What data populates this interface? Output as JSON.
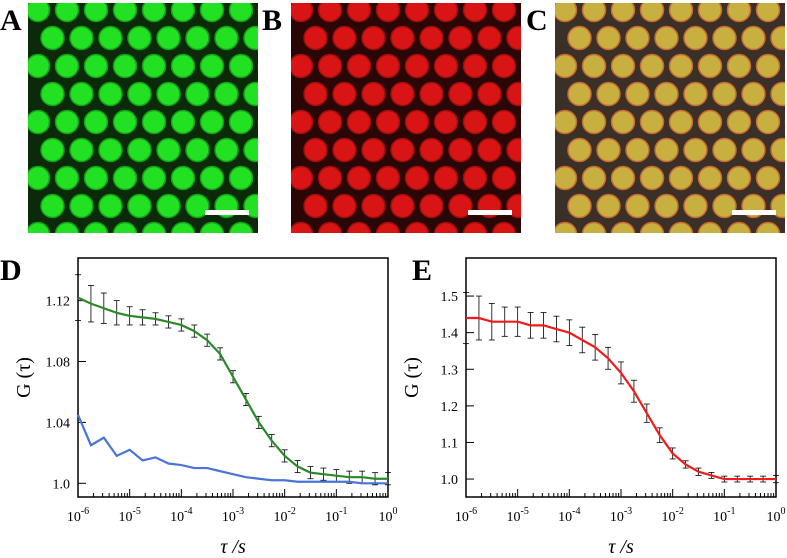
{
  "image_panels": {
    "labels": [
      "A",
      "B",
      "C"
    ]
  },
  "chart_data": [
    {
      "type": "line",
      "label": "D",
      "xscale": "log",
      "xlabel": "τ /s",
      "ylabel": "G (τ)",
      "x": [
        1e-06,
        1.78e-06,
        3.16e-06,
        5.62e-06,
        1e-05,
        1.78e-05,
        3.16e-05,
        5.62e-05,
        0.0001,
        0.000178,
        0.000316,
        0.000562,
        0.001,
        0.00178,
        0.00316,
        0.00562,
        0.01,
        0.0178,
        0.0316,
        0.0562,
        0.1,
        0.178,
        0.316,
        0.562,
        1
      ],
      "xlim": [
        1e-06,
        1
      ],
      "xticks": [
        {
          "value": 1e-06,
          "label": "10-6"
        },
        {
          "value": 1e-05,
          "label": "10-5"
        },
        {
          "value": 0.0001,
          "label": "10-4"
        },
        {
          "value": 0.001,
          "label": "10-3"
        },
        {
          "value": 0.01,
          "label": "10-2"
        },
        {
          "value": 0.1,
          "label": "10-1"
        },
        {
          "value": 1,
          "label": "100"
        }
      ],
      "ylim": [
        0.991,
        1.148
      ],
      "yticks": [
        {
          "value": 1,
          "label": "1.0"
        },
        1.04,
        1.08,
        1.12
      ],
      "series": [
        {
          "color": "#2a8a2a",
          "values": [
            1.122,
            1.118,
            1.115,
            1.112,
            1.11,
            1.109,
            1.108,
            1.106,
            1.104,
            1.1,
            1.094,
            1.085,
            1.07,
            1.055,
            1.04,
            1.028,
            1.018,
            1.011,
            1.007,
            1.006,
            1.005,
            1.004,
            1.004,
            1.003,
            1.003
          ],
          "errors": [
            0.015,
            0.012,
            0.01,
            0.008,
            0.006,
            0.005,
            0.004,
            0.004,
            0.004,
            0.004,
            0.004,
            0.004,
            0.004,
            0.004,
            0.004,
            0.004,
            0.004,
            0.004,
            0.004,
            0.004,
            0.004,
            0.004,
            0.004,
            0.004,
            0.004
          ]
        },
        {
          "color": "#4a74d8",
          "values": [
            1.045,
            1.025,
            1.03,
            1.018,
            1.022,
            1.015,
            1.017,
            1.013,
            1.012,
            1.01,
            1.01,
            1.008,
            1.006,
            1.004,
            1.003,
            1.002,
            1.002,
            1.001,
            1.001,
            1.001,
            1.001,
            1.001,
            1.0,
            1.0,
            1.0
          ]
        }
      ]
    },
    {
      "type": "line",
      "label": "E",
      "xscale": "log",
      "xlabel": "τ /s",
      "ylabel": "G (τ)",
      "x": [
        1e-06,
        1.78e-06,
        3.16e-06,
        5.62e-06,
        1e-05,
        1.78e-05,
        3.16e-05,
        5.62e-05,
        0.0001,
        0.000178,
        0.000316,
        0.000562,
        0.001,
        0.00178,
        0.00316,
        0.00562,
        0.01,
        0.0178,
        0.0316,
        0.0562,
        0.1,
        0.178,
        0.316,
        0.562,
        1
      ],
      "xlim": [
        1e-06,
        1
      ],
      "xticks": [
        {
          "value": 1e-06,
          "label": "10-6"
        },
        {
          "value": 1e-05,
          "label": "10-5"
        },
        {
          "value": 0.0001,
          "label": "10-4"
        },
        {
          "value": 0.001,
          "label": "10-3"
        },
        {
          "value": 0.01,
          "label": "10-2"
        },
        {
          "value": 0.1,
          "label": "10-1"
        },
        {
          "value": 1,
          "label": "100"
        }
      ],
      "ylim": [
        0.951,
        1.604
      ],
      "yticks": [
        {
          "value": 1,
          "label": "1.0"
        },
        1.1,
        1.2,
        1.3,
        1.4,
        1.5
      ],
      "series": [
        {
          "color": "#ee1c1c",
          "values": [
            1.44,
            1.44,
            1.43,
            1.43,
            1.43,
            1.42,
            1.42,
            1.41,
            1.4,
            1.38,
            1.36,
            1.33,
            1.29,
            1.24,
            1.18,
            1.12,
            1.07,
            1.04,
            1.02,
            1.01,
            1.0,
            1.0,
            1.0,
            1.0,
            1.0
          ],
          "errors": [
            0.07,
            0.06,
            0.05,
            0.04,
            0.04,
            0.035,
            0.035,
            0.035,
            0.035,
            0.035,
            0.035,
            0.03,
            0.03,
            0.03,
            0.025,
            0.02,
            0.015,
            0.01,
            0.01,
            0.008,
            0.008,
            0.008,
            0.008,
            0.008,
            0.01
          ]
        }
      ]
    }
  ]
}
